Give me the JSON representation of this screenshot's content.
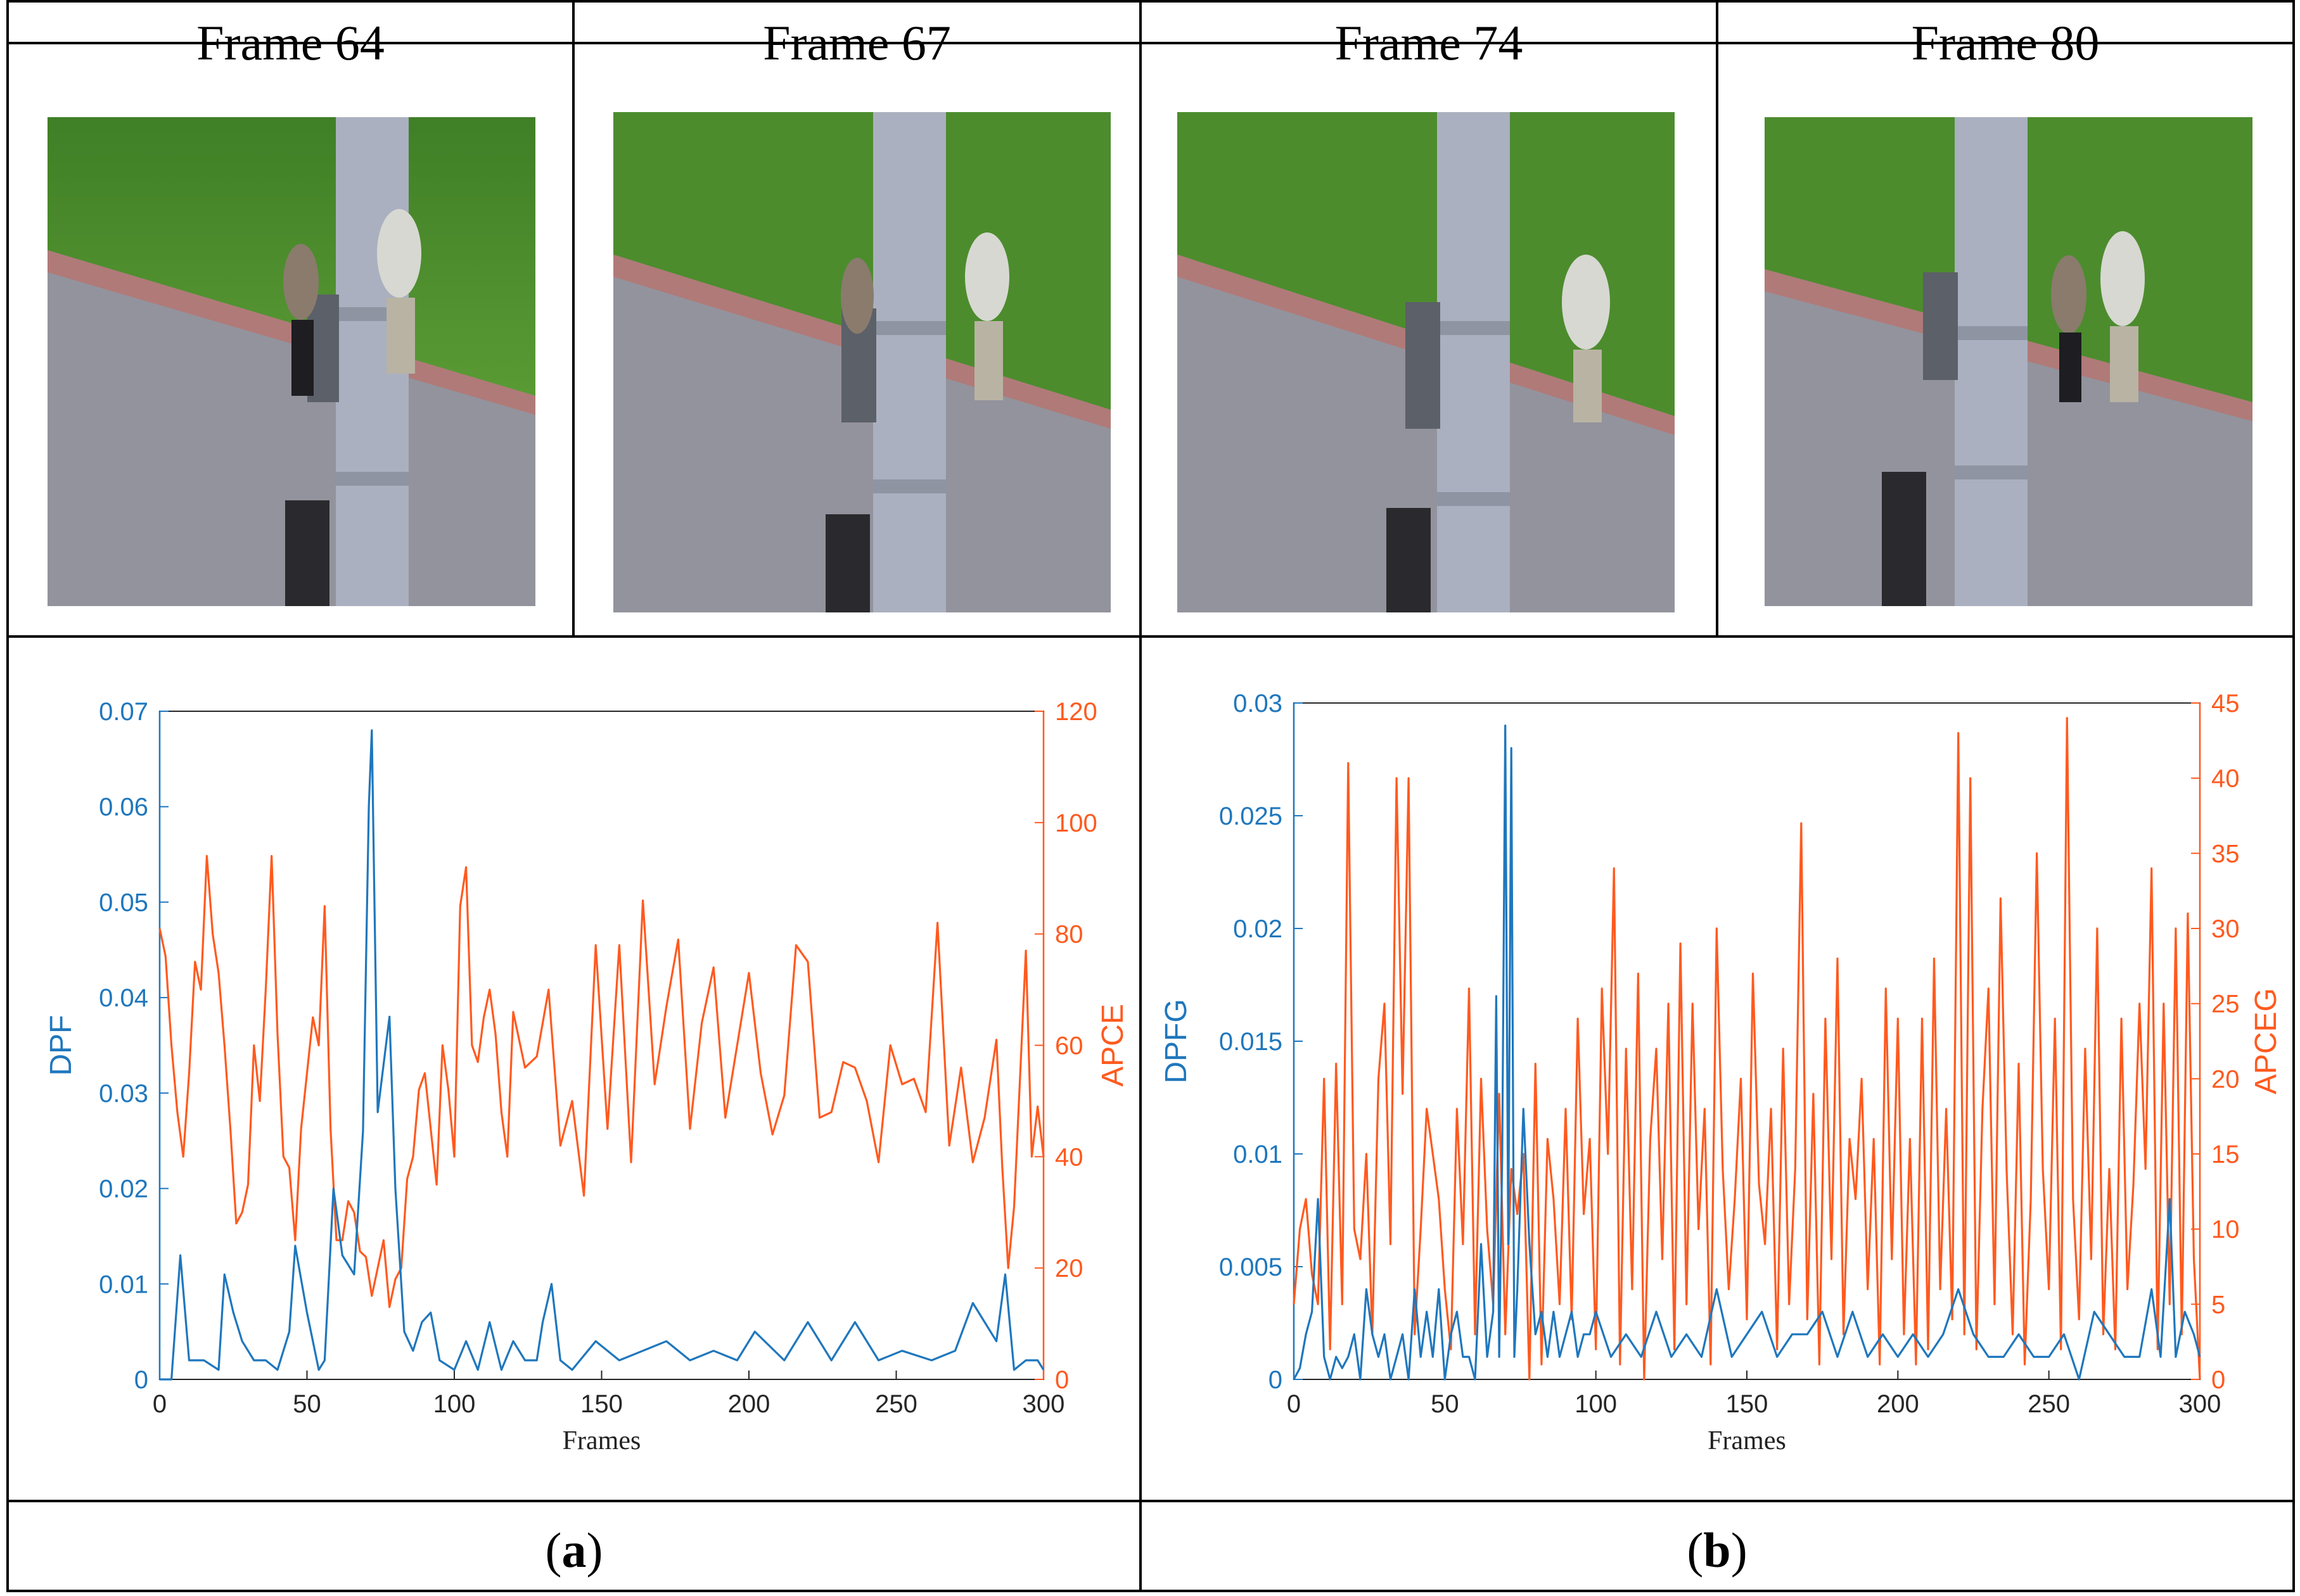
{
  "frames": [
    {
      "label": "Frame 64"
    },
    {
      "label": "Frame 67"
    },
    {
      "label": "Frame 74"
    },
    {
      "label": "Frame 80"
    }
  ],
  "panels": [
    {
      "letter": "a"
    },
    {
      "letter": "b"
    }
  ],
  "colors": {
    "left_series": "#1f77bd",
    "right_series": "#ff5a1f",
    "grass": "#4f8e2e",
    "road": "#8e8f99",
    "curb": "#b07a78",
    "pole": "#a9aebd"
  },
  "chart_data": [
    {
      "type": "line",
      "xlabel": "Frames",
      "ylabel": "DPF",
      "ylabel_right": "APCE",
      "xlim": [
        0,
        300
      ],
      "ylim": [
        0,
        0.07
      ],
      "ylim_right": [
        0,
        120
      ],
      "x_ticks": [
        "0",
        "50",
        "100",
        "150",
        "200",
        "250",
        "300"
      ],
      "y_ticks": [
        "0",
        "0.01",
        "0.02",
        "0.03",
        "0.04",
        "0.05",
        "0.06",
        "0.07"
      ],
      "y_right_ticks": [
        "0",
        "20",
        "40",
        "60",
        "80",
        "100",
        "120"
      ],
      "series": [
        {
          "axis": "left",
          "x": [
            0,
            4,
            7,
            10,
            15,
            20,
            22,
            25,
            28,
            32,
            36,
            40,
            44,
            46,
            50,
            54,
            56,
            59,
            62,
            66,
            69,
            71,
            72,
            74,
            76,
            78,
            80,
            83,
            86,
            89,
            92,
            95,
            100,
            104,
            108,
            112,
            116,
            120,
            124,
            128,
            130,
            133,
            136,
            140,
            148,
            156,
            164,
            172,
            180,
            188,
            196,
            202,
            212,
            220,
            228,
            236,
            244,
            252,
            262,
            270,
            276,
            284,
            287,
            290,
            294,
            298,
            300
          ],
          "y": [
            0.0,
            0.0,
            0.013,
            0.002,
            0.002,
            0.001,
            0.011,
            0.007,
            0.004,
            0.002,
            0.002,
            0.001,
            0.005,
            0.014,
            0.007,
            0.001,
            0.002,
            0.02,
            0.013,
            0.011,
            0.026,
            0.06,
            0.068,
            0.028,
            0.033,
            0.038,
            0.02,
            0.005,
            0.003,
            0.006,
            0.007,
            0.002,
            0.001,
            0.004,
            0.001,
            0.006,
            0.001,
            0.004,
            0.002,
            0.002,
            0.006,
            0.01,
            0.002,
            0.001,
            0.004,
            0.002,
            0.003,
            0.004,
            0.002,
            0.003,
            0.002,
            0.005,
            0.002,
            0.006,
            0.002,
            0.006,
            0.002,
            0.003,
            0.002,
            0.003,
            0.008,
            0.004,
            0.011,
            0.001,
            0.002,
            0.002,
            0.001
          ]
        },
        {
          "axis": "right",
          "x": [
            0,
            2,
            4,
            6,
            8,
            10,
            12,
            14,
            16,
            18,
            20,
            22,
            24,
            26,
            28,
            30,
            32,
            34,
            36,
            38,
            40,
            42,
            44,
            46,
            48,
            50,
            52,
            54,
            56,
            58,
            60,
            62,
            64,
            66,
            68,
            70,
            72,
            74,
            76,
            78,
            80,
            82,
            84,
            86,
            88,
            90,
            92,
            94,
            96,
            98,
            100,
            102,
            104,
            106,
            108,
            110,
            112,
            114,
            116,
            118,
            120,
            124,
            128,
            132,
            136,
            140,
            144,
            148,
            152,
            156,
            160,
            164,
            168,
            172,
            176,
            180,
            184,
            188,
            192,
            196,
            200,
            204,
            208,
            212,
            216,
            220,
            224,
            228,
            232,
            236,
            240,
            244,
            248,
            252,
            256,
            260,
            264,
            268,
            272,
            276,
            280,
            284,
            286,
            288,
            290,
            292,
            294,
            296,
            298,
            300
          ],
          "y": [
            81,
            76,
            60,
            48,
            40,
            55,
            75,
            70,
            94,
            80,
            73,
            60,
            45,
            28,
            30,
            35,
            60,
            50,
            70,
            94,
            62,
            40,
            38,
            25,
            45,
            55,
            65,
            60,
            85,
            45,
            25,
            25,
            32,
            30,
            23,
            22,
            15,
            20,
            25,
            13,
            18,
            20,
            36,
            40,
            52,
            55,
            45,
            35,
            60,
            52,
            40,
            85,
            92,
            60,
            57,
            65,
            70,
            62,
            48,
            40,
            66,
            56,
            58,
            70,
            42,
            50,
            33,
            78,
            45,
            78,
            39,
            86,
            53,
            67,
            79,
            45,
            64,
            74,
            47,
            60,
            73,
            55,
            44,
            51,
            78,
            75,
            47,
            48,
            57,
            56,
            50,
            39,
            60,
            53,
            54,
            48,
            82,
            42,
            56,
            39,
            47,
            61,
            38,
            20,
            31,
            54,
            77,
            40,
            49,
            40
          ]
        }
      ]
    },
    {
      "type": "line",
      "xlabel": "Frames",
      "ylabel": "DPFG",
      "ylabel_right": "APCEG",
      "xlim": [
        0,
        300
      ],
      "ylim": [
        0,
        0.03
      ],
      "ylim_right": [
        0,
        45
      ],
      "x_ticks": [
        "0",
        "50",
        "100",
        "150",
        "200",
        "250",
        "300"
      ],
      "y_ticks": [
        "0",
        "0.005",
        "0.01",
        "0.015",
        "0.02",
        "0.025",
        "0.03"
      ],
      "y_right_ticks": [
        "0",
        "5",
        "10",
        "15",
        "20",
        "25",
        "30",
        "35",
        "40",
        "45"
      ],
      "series": [
        {
          "axis": "left",
          "x": [
            0,
            2,
            4,
            6,
            8,
            10,
            12,
            14,
            16,
            18,
            20,
            22,
            24,
            26,
            28,
            30,
            32,
            34,
            36,
            38,
            40,
            42,
            44,
            46,
            48,
            50,
            52,
            54,
            56,
            58,
            60,
            62,
            64,
            66,
            67,
            68,
            69,
            70,
            71,
            72,
            73,
            74,
            76,
            78,
            80,
            82,
            84,
            86,
            88,
            90,
            92,
            94,
            96,
            98,
            100,
            105,
            110,
            115,
            120,
            125,
            130,
            135,
            140,
            145,
            150,
            155,
            160,
            165,
            170,
            175,
            180,
            185,
            190,
            195,
            200,
            205,
            210,
            215,
            220,
            225,
            230,
            235,
            240,
            245,
            250,
            255,
            260,
            265,
            270,
            275,
            280,
            284,
            287,
            290,
            292,
            295,
            298,
            300
          ],
          "y": [
            0.0,
            0.0005,
            0.002,
            0.003,
            0.008,
            0.001,
            0.0,
            0.001,
            0.0005,
            0.001,
            0.002,
            0.0,
            0.004,
            0.002,
            0.001,
            0.002,
            0.0,
            0.001,
            0.002,
            0.0,
            0.004,
            0.001,
            0.003,
            0.001,
            0.004,
            0.0,
            0.002,
            0.003,
            0.001,
            0.001,
            0.0,
            0.006,
            0.001,
            0.003,
            0.017,
            0.001,
            0.01,
            0.029,
            0.006,
            0.028,
            0.001,
            0.004,
            0.012,
            0.006,
            0.002,
            0.003,
            0.001,
            0.003,
            0.001,
            0.002,
            0.003,
            0.001,
            0.002,
            0.002,
            0.003,
            0.001,
            0.002,
            0.001,
            0.003,
            0.001,
            0.002,
            0.001,
            0.004,
            0.001,
            0.002,
            0.003,
            0.001,
            0.002,
            0.002,
            0.003,
            0.001,
            0.003,
            0.001,
            0.002,
            0.001,
            0.002,
            0.001,
            0.002,
            0.004,
            0.002,
            0.001,
            0.001,
            0.002,
            0.001,
            0.001,
            0.002,
            0.0,
            0.003,
            0.002,
            0.001,
            0.001,
            0.004,
            0.001,
            0.008,
            0.001,
            0.003,
            0.002,
            0.001
          ]
        },
        {
          "axis": "right",
          "x": [
            0,
            2,
            4,
            6,
            8,
            10,
            12,
            14,
            16,
            18,
            20,
            22,
            24,
            26,
            28,
            30,
            32,
            34,
            36,
            38,
            40,
            42,
            44,
            46,
            48,
            50,
            52,
            54,
            56,
            58,
            60,
            62,
            64,
            66,
            68,
            70,
            72,
            74,
            76,
            78,
            80,
            82,
            84,
            86,
            88,
            90,
            92,
            94,
            96,
            98,
            100,
            102,
            104,
            106,
            108,
            110,
            112,
            114,
            116,
            118,
            120,
            122,
            124,
            126,
            128,
            130,
            132,
            134,
            136,
            138,
            140,
            142,
            144,
            146,
            148,
            150,
            152,
            154,
            156,
            158,
            160,
            162,
            164,
            166,
            168,
            170,
            172,
            174,
            176,
            178,
            180,
            182,
            184,
            186,
            188,
            190,
            192,
            194,
            196,
            198,
            200,
            202,
            204,
            206,
            208,
            210,
            212,
            214,
            216,
            218,
            220,
            222,
            224,
            226,
            228,
            230,
            232,
            234,
            236,
            238,
            240,
            242,
            244,
            246,
            248,
            250,
            252,
            254,
            256,
            258,
            260,
            262,
            264,
            266,
            268,
            270,
            272,
            274,
            276,
            278,
            280,
            282,
            284,
            286,
            288,
            290,
            292,
            294,
            296,
            298,
            300
          ],
          "y": [
            5,
            10,
            12,
            7,
            5,
            20,
            2,
            21,
            5,
            41,
            10,
            8,
            15,
            3,
            20,
            25,
            9,
            40,
            19,
            40,
            3,
            10,
            18,
            15,
            12,
            6,
            2,
            18,
            9,
            26,
            3,
            20,
            10,
            5,
            19,
            3,
            14,
            11,
            15,
            0,
            21,
            1,
            16,
            12,
            5,
            18,
            4,
            24,
            11,
            16,
            2,
            26,
            15,
            34,
            1,
            22,
            6,
            27,
            0,
            16,
            22,
            8,
            25,
            2,
            29,
            5,
            25,
            10,
            18,
            1,
            30,
            14,
            6,
            12,
            20,
            4,
            27,
            13,
            9,
            18,
            2,
            22,
            5,
            14,
            37,
            4,
            19,
            1,
            24,
            8,
            28,
            3,
            16,
            12,
            20,
            6,
            16,
            1,
            26,
            8,
            24,
            3,
            16,
            1,
            24,
            2,
            28,
            6,
            18,
            4,
            43,
            3,
            40,
            2,
            18,
            26,
            5,
            32,
            14,
            3,
            21,
            1,
            12,
            35,
            14,
            6,
            24,
            2,
            44,
            12,
            4,
            22,
            8,
            30,
            3,
            14,
            2,
            24,
            6,
            13,
            25,
            14,
            34,
            2,
            25,
            5,
            30,
            3,
            31,
            8,
            0
          ]
        }
      ]
    }
  ]
}
